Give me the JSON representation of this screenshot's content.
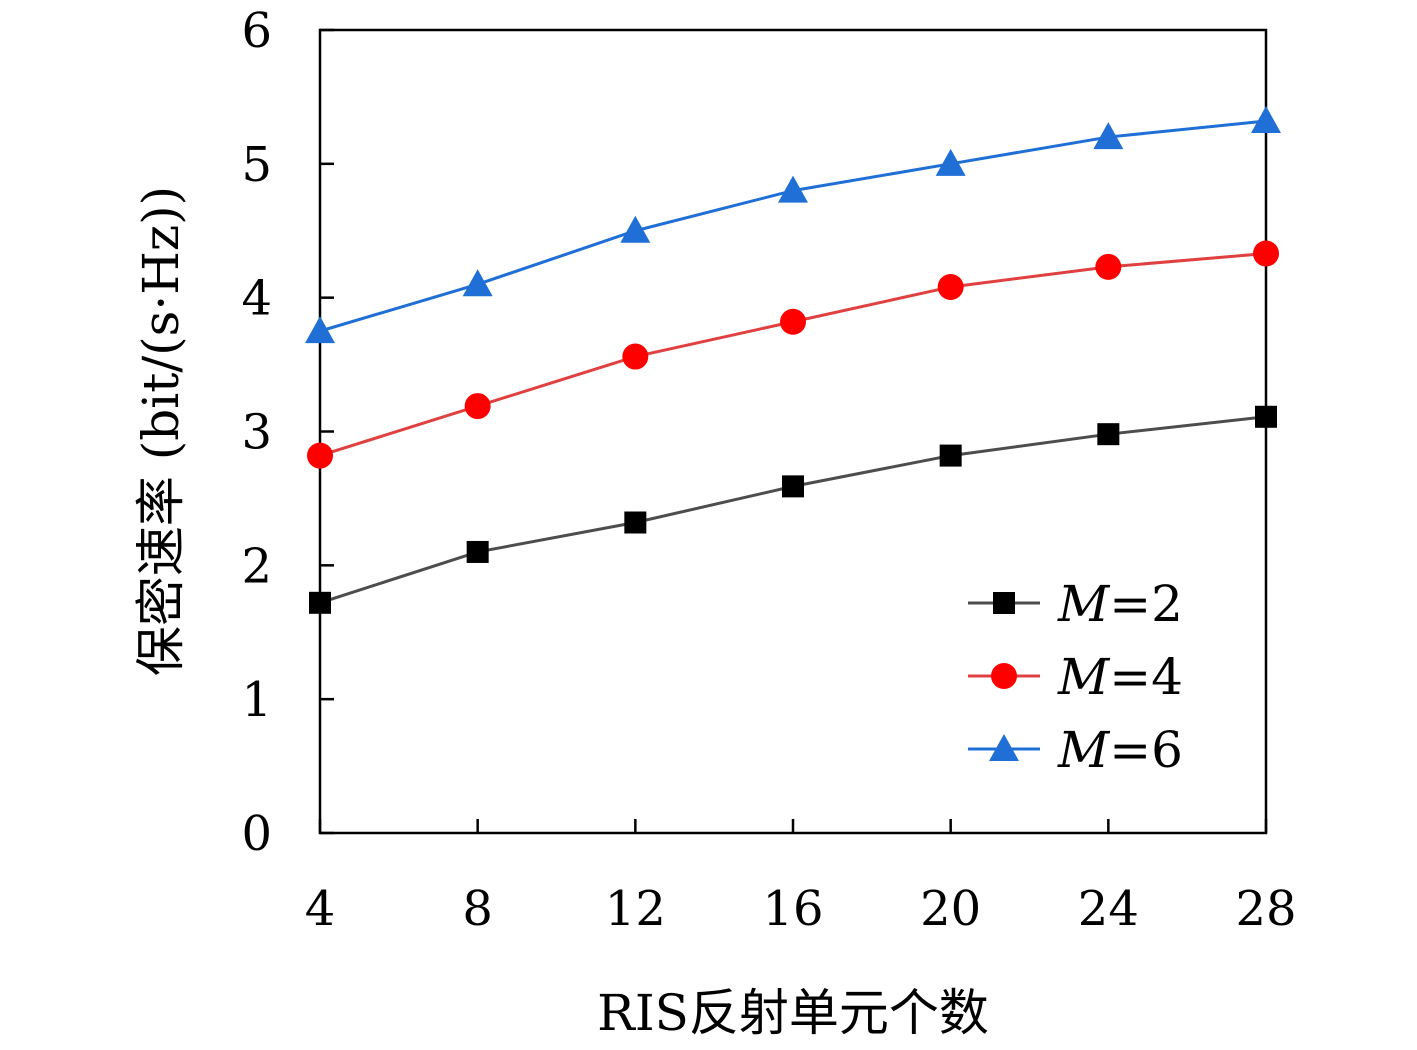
{
  "chart_data": {
    "type": "line",
    "xlabel": "RIS反射单元个数",
    "ylabel": "保密速率 (bit/(s·Hz))",
    "x": [
      4,
      8,
      12,
      16,
      20,
      24,
      28
    ],
    "xlim": [
      4,
      28
    ],
    "ylim": [
      0,
      6
    ],
    "xticks": [
      "4",
      "8",
      "12",
      "16",
      "20",
      "24",
      "28"
    ],
    "yticks": [
      "0",
      "1",
      "2",
      "3",
      "4",
      "5",
      "6"
    ],
    "grid": false,
    "legend_position": "bottom-right",
    "series": [
      {
        "name_var": "M",
        "name_value": "=2",
        "name": "M=2",
        "color": "#4d4d4d",
        "marker_color": "#000000",
        "marker": "square",
        "values": [
          1.72,
          2.1,
          2.32,
          2.59,
          2.82,
          2.98,
          3.11
        ]
      },
      {
        "name_var": "M",
        "name_value": "=4",
        "name": "M=4",
        "color": "#e04040",
        "marker_color": "#ff0000",
        "marker": "circle",
        "values": [
          2.82,
          3.19,
          3.56,
          3.82,
          4.08,
          4.23,
          4.33
        ]
      },
      {
        "name_var": "M",
        "name_value": "=6",
        "name": "M=6",
        "color": "#1f6fd6",
        "marker_color": "#1f6fd6",
        "marker": "triangle",
        "values": [
          3.75,
          4.1,
          4.5,
          4.8,
          5.0,
          5.2,
          5.32
        ]
      }
    ]
  }
}
